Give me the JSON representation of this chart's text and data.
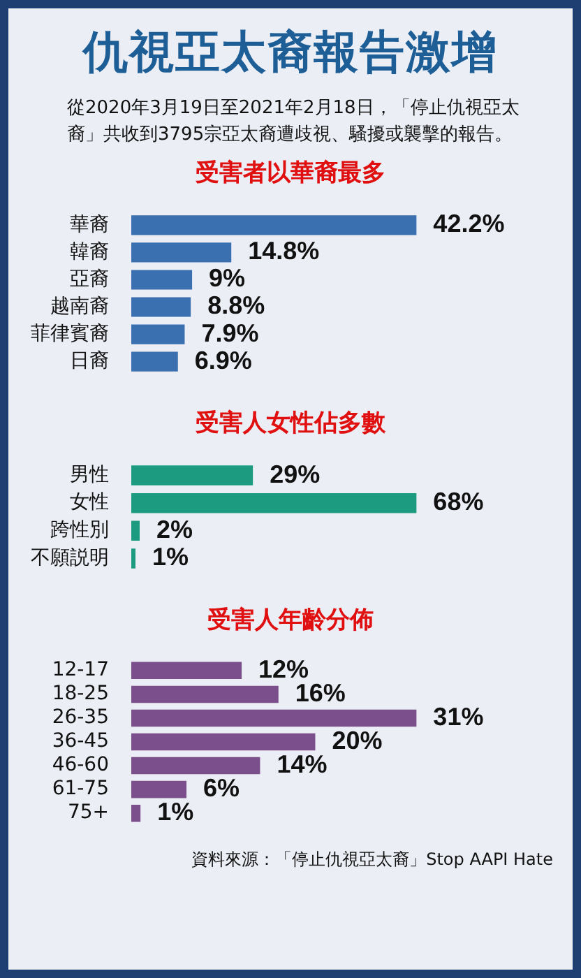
{
  "chart_data": [
    {
      "type": "bar",
      "orientation": "horizontal",
      "title": "仇視亞太裔報告激增",
      "annotations": [
        "從2020年3月19日至2021年2月18日，「停止仇視亞太裔」共收到3795宗亞太裔遭歧視、騷擾或襲擊的報告。"
      ],
      "subtitle": "受害者以華裔最多",
      "categories": [
        "華裔",
        "韓裔",
        "亞裔",
        "越南裔",
        "菲律賓裔",
        "日裔"
      ],
      "values": [
        42.2,
        14.8,
        9,
        8.8,
        7.9,
        6.9
      ],
      "color": "#3a6fb0",
      "value_labels": [
        "42.2%",
        "14.8%",
        "9%",
        "8.8%",
        "7.9%",
        "6.9%"
      ]
    },
    {
      "type": "bar",
      "orientation": "horizontal",
      "title": "受害人女性佔多數",
      "categories": [
        "男性",
        "女性",
        "跨性別",
        "不願説明"
      ],
      "values": [
        29,
        68,
        2,
        1
      ],
      "color": "#1c9b80",
      "value_labels": [
        "29%",
        "68%",
        "2%",
        "1%"
      ]
    },
    {
      "type": "bar",
      "orientation": "horizontal",
      "title": "受害人年齡分佈",
      "categories": [
        "12-17",
        "18-25",
        "26-35",
        "36-45",
        "46-60",
        "61-75",
        "75+"
      ],
      "values": [
        12,
        16,
        31,
        20,
        14,
        6,
        1
      ],
      "color": "#7b4f8c",
      "value_labels": [
        "12%",
        "16%",
        "31%",
        "20%",
        "14%",
        "6%",
        "1%"
      ],
      "annotations": [
        "資料來源：「停止仇視亞太裔」Stop AAPI Hate"
      ]
    }
  ]
}
